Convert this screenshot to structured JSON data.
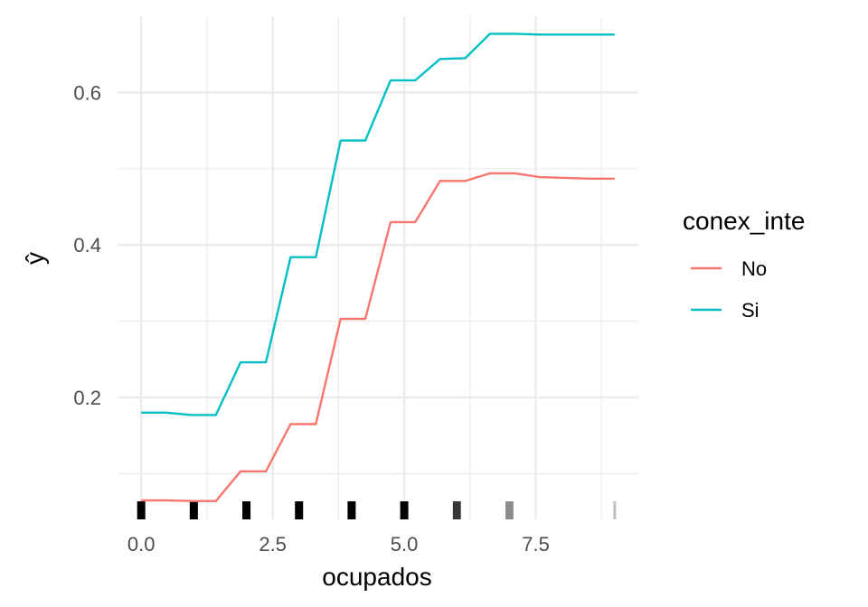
{
  "chart_data": {
    "type": "line",
    "title": "",
    "xlabel": "ocupados",
    "ylabel": "ŷ",
    "xlim": [
      -0.45,
      9.45
    ],
    "ylim": [
      0.04,
      0.7
    ],
    "x_ticks": [
      0.0,
      2.5,
      5.0,
      7.5
    ],
    "x_tick_labels": [
      "0.0",
      "2.5",
      "5.0",
      "7.5"
    ],
    "x_minor_ticks": [
      1.25,
      3.75,
      6.25,
      8.75
    ],
    "y_ticks": [
      0.2,
      0.4,
      0.6
    ],
    "y_tick_labels": [
      "0.2",
      "0.4",
      "0.6"
    ],
    "y_minor_ticks": [
      0.1,
      0.3,
      0.5
    ],
    "grid": true,
    "legend": {
      "title": "conex_inte",
      "position": "right"
    },
    "series": [
      {
        "name": "No",
        "color": "#F8766D",
        "x": [
          0,
          0.47,
          0.95,
          1.42,
          1.89,
          2.37,
          2.84,
          3.32,
          3.79,
          4.26,
          4.74,
          5.21,
          5.68,
          6.16,
          6.63,
          7.11,
          7.58,
          8.05,
          8.53,
          9.0
        ],
        "y": [
          0.065,
          0.065,
          0.064,
          0.064,
          0.103,
          0.103,
          0.165,
          0.165,
          0.303,
          0.303,
          0.43,
          0.43,
          0.484,
          0.484,
          0.494,
          0.494,
          0.489,
          0.488,
          0.487,
          0.487
        ]
      },
      {
        "name": "Si",
        "color": "#00BFC4",
        "x": [
          0,
          0.47,
          0.95,
          1.42,
          1.89,
          2.37,
          2.84,
          3.32,
          3.79,
          4.26,
          4.74,
          5.21,
          5.68,
          6.16,
          6.63,
          7.11,
          7.58,
          8.05,
          8.53,
          9.0
        ],
        "y": [
          0.18,
          0.18,
          0.177,
          0.177,
          0.246,
          0.246,
          0.384,
          0.384,
          0.537,
          0.537,
          0.616,
          0.616,
          0.644,
          0.645,
          0.677,
          0.677,
          0.676,
          0.676,
          0.676,
          0.676
        ]
      }
    ],
    "rug": [
      {
        "x": 0,
        "opacity": 1.0
      },
      {
        "x": 1,
        "opacity": 1.0
      },
      {
        "x": 2,
        "opacity": 1.0
      },
      {
        "x": 3,
        "opacity": 1.0
      },
      {
        "x": 4,
        "opacity": 1.0
      },
      {
        "x": 5,
        "opacity": 1.0
      },
      {
        "x": 5.95,
        "opacity": 0.8
      },
      {
        "x": 6.0,
        "opacity": 0.8
      },
      {
        "x": 6.05,
        "opacity": 0.8
      },
      {
        "x": 6.95,
        "opacity": 0.45
      },
      {
        "x": 7.0,
        "opacity": 0.45
      },
      {
        "x": 7.05,
        "opacity": 0.45
      },
      {
        "x": 9.0,
        "opacity": 0.25
      }
    ]
  }
}
